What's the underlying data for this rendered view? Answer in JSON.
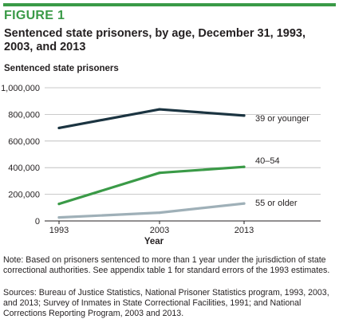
{
  "figure": {
    "label": "FIGURE 1",
    "title": "Sentenced state prisoners, by age, December 31, 1993, 2003, and 2013",
    "accent_color": "#3a9a47",
    "note": "Note: Based on prisoners sentenced to more than 1 year under the jurisdiction of state correctional authorities. See appendix table 1 for standard errors of the 1993 estimates.",
    "sources": "Sources: Bureau of Justice Statistics, National Prisoner Statistics program, 1993, 2003, and 2013; Survey of Inmates in State Correctional Facilities, 1991; and National Corrections Reporting Program, 2003 and 2013."
  },
  "chart_data": {
    "type": "line",
    "ylabel": "Sentenced state prisoners",
    "xlabel": "Year",
    "x": [
      "1993",
      "2003",
      "2013"
    ],
    "ylim": [
      0,
      1000000
    ],
    "yticks": [
      0,
      200000,
      400000,
      600000,
      800000,
      1000000
    ],
    "ytick_labels": [
      "0",
      "200,000",
      "400,000",
      "600,000",
      "800,000",
      "1,000,000"
    ],
    "grid": "horizontal",
    "legend": "direct labels at line ends",
    "series": [
      {
        "name": "39 or younger",
        "values": [
          698000,
          838000,
          791000
        ],
        "color": "#1b3441"
      },
      {
        "name": "40–54",
        "values": [
          128000,
          361000,
          406000
        ],
        "color": "#3a9a47"
      },
      {
        "name": "55 or older",
        "values": [
          26000,
          62000,
          131000
        ],
        "color": "#9fb0b8"
      }
    ]
  }
}
